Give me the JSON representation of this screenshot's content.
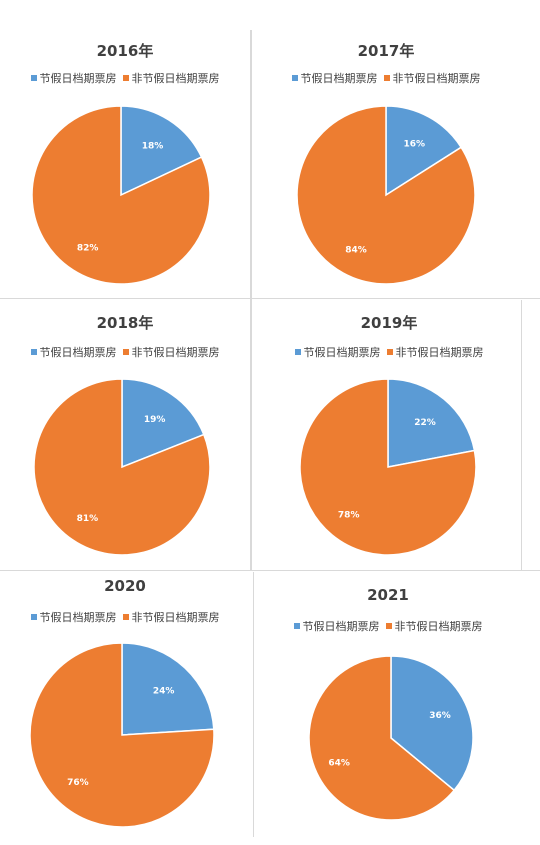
{
  "chart_data": [
    {
      "type": "pie",
      "title": "2016年",
      "categories": [
        "节假日档期票房",
        "非节假日档期票房"
      ],
      "values": [
        18,
        82
      ],
      "labels": [
        "18%",
        "82%"
      ],
      "colors": [
        "#5b9bd5",
        "#ed7d31"
      ],
      "legend": "top"
    },
    {
      "type": "pie",
      "title": "2017年",
      "categories": [
        "节假日档期票房",
        "非节假日档期票房"
      ],
      "values": [
        16,
        84
      ],
      "labels": [
        "16%",
        "84%"
      ],
      "colors": [
        "#5b9bd5",
        "#ed7d31"
      ],
      "legend": "top"
    },
    {
      "type": "pie",
      "title": "2018年",
      "categories": [
        "节假日档期票房",
        "非节假日档期票房"
      ],
      "values": [
        19,
        81
      ],
      "labels": [
        "19%",
        "81%"
      ],
      "colors": [
        "#5b9bd5",
        "#ed7d31"
      ],
      "legend": "top"
    },
    {
      "type": "pie",
      "title": "2019年",
      "categories": [
        "节假日档期票房",
        "非节假日档期票房"
      ],
      "values": [
        22,
        78
      ],
      "labels": [
        "22%",
        "78%"
      ],
      "colors": [
        "#5b9bd5",
        "#ed7d31"
      ],
      "legend": "top"
    },
    {
      "type": "pie",
      "title": "2020",
      "categories": [
        "节假日档期票房",
        "非节假日档期票房"
      ],
      "values": [
        24,
        76
      ],
      "labels": [
        "24%",
        "76%"
      ],
      "colors": [
        "#5b9bd5",
        "#ed7d31"
      ],
      "legend": "top"
    },
    {
      "type": "pie",
      "title": "2021",
      "categories": [
        "节假日档期票房",
        "非节假日档期票房"
      ],
      "values": [
        36,
        64
      ],
      "labels": [
        "36%",
        "64%"
      ],
      "colors": [
        "#5b9bd5",
        "#ed7d31"
      ],
      "legend": "top"
    }
  ]
}
